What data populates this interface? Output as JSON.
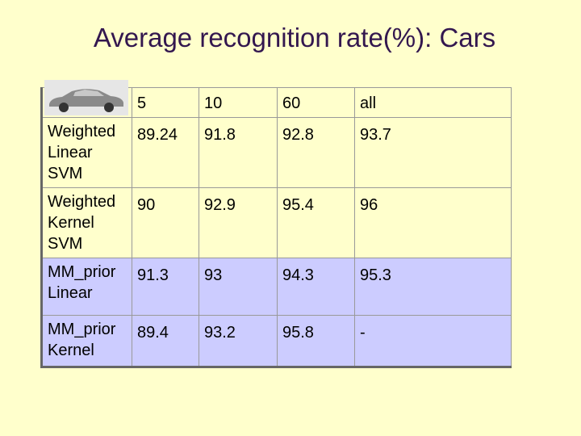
{
  "title": "Average recognition rate(%): Cars",
  "table": {
    "header": [
      "5",
      "10",
      "60",
      "all"
    ],
    "rows": [
      {
        "label": "Weighted Linear SVM",
        "cells": [
          "89.24",
          "91.8",
          "92.8",
          "93.7"
        ]
      },
      {
        "label": "Weighted Kernel SVM",
        "cells": [
          "90",
          "92.9",
          "95.4",
          "96"
        ]
      },
      {
        "label": "MM_prior Linear",
        "cells": [
          "91.3",
          "93",
          "94.3",
          "95.3"
        ]
      },
      {
        "label": "MM_prior Kernel",
        "cells": [
          "89.4",
          "93.2",
          "95.8",
          "-"
        ]
      }
    ]
  }
}
